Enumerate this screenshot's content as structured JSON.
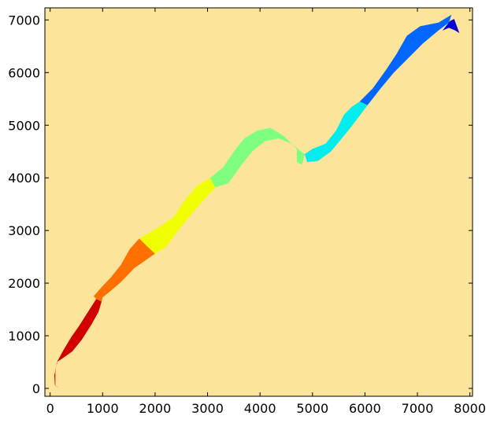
{
  "chart_data": {
    "type": "heatmap",
    "title": "",
    "xlabel": "",
    "ylabel": "",
    "xlim": [
      -100,
      8050
    ],
    "ylim": [
      -150,
      7230
    ],
    "x_ticks": [
      "0",
      "1000",
      "2000",
      "3000",
      "4000",
      "5000",
      "6000",
      "7000",
      "8000"
    ],
    "y_ticks": [
      "0",
      "1000",
      "2000",
      "3000",
      "4000",
      "5000",
      "6000",
      "7000"
    ],
    "x_tick_values": [
      0,
      1000,
      2000,
      3000,
      4000,
      5000,
      6000,
      7000,
      8000
    ],
    "y_tick_values": [
      0,
      1000,
      2000,
      3000,
      4000,
      5000,
      6000,
      7000
    ],
    "grid": false,
    "legend": "none",
    "colors": {
      "background": "#fde49b",
      "frame": "#000000"
    },
    "series": [
      {
        "color": "#d00000",
        "points": [
          [
            180,
            0
          ],
          [
            100,
            50
          ],
          [
            100,
            300
          ],
          [
            130,
            500
          ],
          [
            250,
            580
          ],
          [
            420,
            700
          ],
          [
            600,
            920
          ],
          [
            780,
            1200
          ],
          [
            920,
            1450
          ],
          [
            980,
            1650
          ],
          [
            880,
            1700
          ],
          [
            720,
            1450
          ],
          [
            560,
            1200
          ],
          [
            400,
            970
          ],
          [
            250,
            720
          ],
          [
            140,
            520
          ],
          [
            80,
            250
          ],
          [
            90,
            60
          ]
        ]
      },
      {
        "color": "#ff7000",
        "points": [
          [
            880,
            1700
          ],
          [
            980,
            1650
          ],
          [
            1000,
            1730
          ],
          [
            1150,
            1850
          ],
          [
            1350,
            2020
          ],
          [
            1600,
            2280
          ],
          [
            2000,
            2560
          ],
          [
            1850,
            2700
          ],
          [
            1700,
            2850
          ],
          [
            1520,
            2650
          ],
          [
            1350,
            2350
          ],
          [
            1150,
            2100
          ],
          [
            960,
            1900
          ],
          [
            830,
            1750
          ]
        ]
      },
      {
        "color": "#f0ff00",
        "points": [
          [
            1700,
            2850
          ],
          [
            1850,
            2700
          ],
          [
            2000,
            2560
          ],
          [
            2200,
            2680
          ],
          [
            2400,
            2950
          ],
          [
            2600,
            3200
          ],
          [
            2900,
            3550
          ],
          [
            3150,
            3820
          ],
          [
            3050,
            4000
          ],
          [
            2800,
            3850
          ],
          [
            2550,
            3550
          ],
          [
            2350,
            3250
          ],
          [
            2100,
            3080
          ],
          [
            1850,
            2930
          ]
        ]
      },
      {
        "color": "#7fff7f",
        "points": [
          [
            3050,
            4000
          ],
          [
            3150,
            3820
          ],
          [
            3400,
            3900
          ],
          [
            3650,
            4250
          ],
          [
            3850,
            4500
          ],
          [
            4100,
            4700
          ],
          [
            4350,
            4750
          ],
          [
            4600,
            4650
          ],
          [
            4850,
            4450
          ],
          [
            4800,
            4250
          ],
          [
            4700,
            4300
          ],
          [
            4700,
            4550
          ],
          [
            4450,
            4800
          ],
          [
            4200,
            4950
          ],
          [
            3950,
            4900
          ],
          [
            3700,
            4750
          ],
          [
            3500,
            4500
          ],
          [
            3300,
            4200
          ]
        ]
      },
      {
        "color": "#00eded",
        "points": [
          [
            4850,
            4450
          ],
          [
            4900,
            4300
          ],
          [
            5100,
            4320
          ],
          [
            5350,
            4500
          ],
          [
            5600,
            4800
          ],
          [
            5800,
            5050
          ],
          [
            6050,
            5380
          ],
          [
            5900,
            5450
          ],
          [
            5750,
            5350
          ],
          [
            5600,
            5200
          ],
          [
            5450,
            4900
          ],
          [
            5250,
            4650
          ],
          [
            5000,
            4550
          ]
        ]
      },
      {
        "color": "#0066ff",
        "points": [
          [
            5900,
            5450
          ],
          [
            6050,
            5380
          ],
          [
            6300,
            5700
          ],
          [
            6550,
            6000
          ],
          [
            6800,
            6250
          ],
          [
            7100,
            6550
          ],
          [
            7400,
            6800
          ],
          [
            7600,
            6950
          ],
          [
            7650,
            7100
          ],
          [
            7400,
            6950
          ],
          [
            7050,
            6880
          ],
          [
            6800,
            6700
          ],
          [
            6600,
            6350
          ],
          [
            6400,
            6050
          ],
          [
            6150,
            5700
          ]
        ]
      },
      {
        "color": "#0000d0",
        "points": [
          [
            7480,
            6800
          ],
          [
            7620,
            6980
          ],
          [
            7700,
            7020
          ],
          [
            7800,
            6750
          ],
          [
            7720,
            6800
          ],
          [
            7600,
            6850
          ]
        ]
      }
    ]
  }
}
